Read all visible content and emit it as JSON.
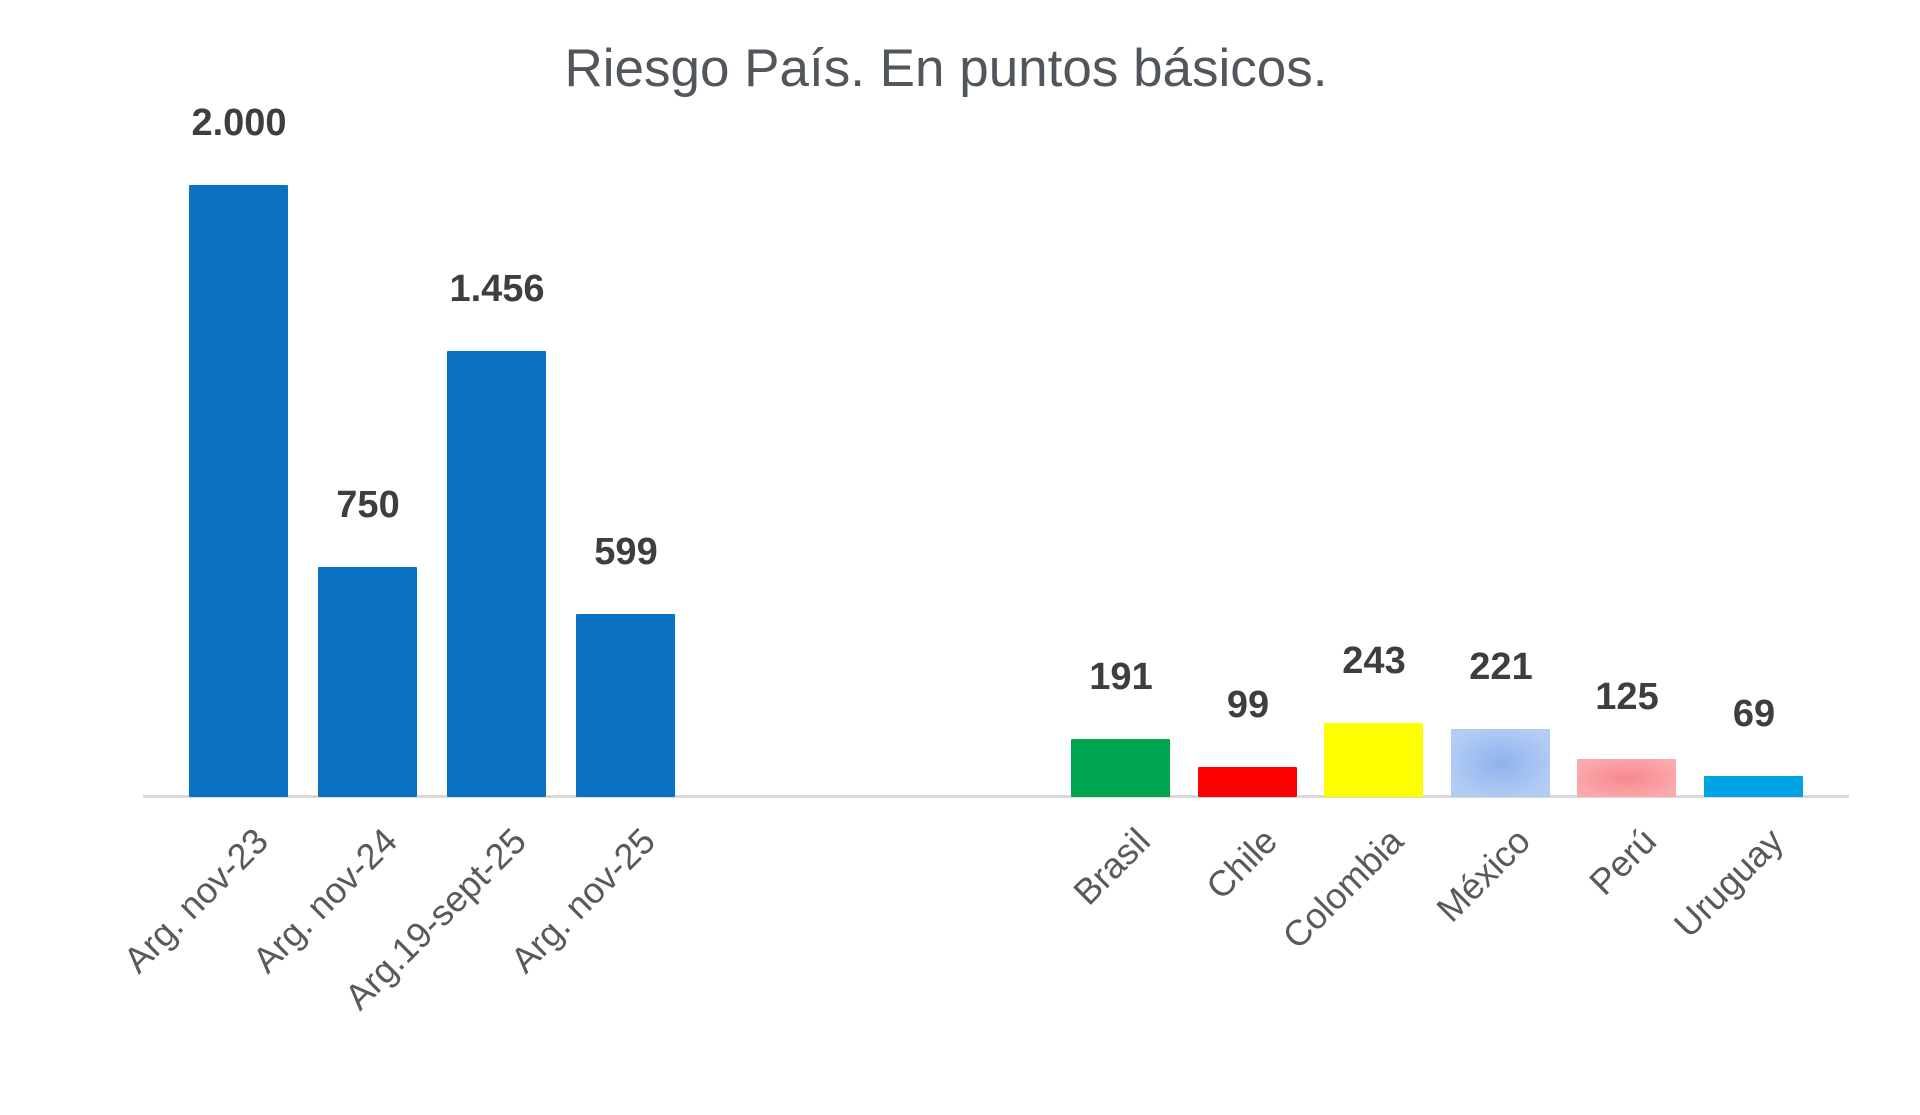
{
  "page": {
    "background_color": "#ffffff"
  },
  "chart_data": {
    "type": "bar",
    "title": "Riesgo País. En puntos básicos.",
    "xlabel": "",
    "ylabel": "",
    "ylim": [
      0,
      2000
    ],
    "grid": false,
    "legend": "none",
    "data_labels": true,
    "y_axis_visible": false,
    "category_label_rotation_deg": 45,
    "colors": {
      "title": "#51565c",
      "value_label": "#3e3e40",
      "category_label": "#595959",
      "axis_line": "#d9d9d9",
      "argentina_blue": "#0b72c1"
    },
    "categories": [
      "Arg. nov-23",
      "Arg. nov-24",
      "Arg.19-sept-25",
      "Arg. nov-25",
      "Brasil",
      "Chile",
      "Colombia",
      "México",
      "Perú",
      "Uruguay"
    ],
    "values": [
      2000,
      750,
      1456,
      599,
      191,
      99,
      243,
      221,
      125,
      69
    ],
    "bars": [
      {
        "label": "Arg. nov-23",
        "value": 2000,
        "display": "2.000",
        "group": "argentina",
        "fill": {
          "color": "#0b72c1"
        }
      },
      {
        "label": "Arg. nov-24",
        "value": 750,
        "display": "750",
        "group": "argentina",
        "fill": {
          "color": "#0b72c1"
        }
      },
      {
        "label": "Arg.19-sept-25",
        "value": 1456,
        "display": "1.456",
        "group": "argentina",
        "fill": {
          "color": "#0b72c1"
        }
      },
      {
        "label": "Arg. nov-25",
        "value": 599,
        "display": "599",
        "group": "argentina",
        "fill": {
          "color": "#0b72c1"
        }
      },
      {
        "label": "Brasil",
        "value": 191,
        "display": "191",
        "group": "latam",
        "fill": {
          "color": "#00a550"
        }
      },
      {
        "label": "Chile",
        "value": 99,
        "display": "99",
        "group": "latam",
        "fill": {
          "color": "#fd0002"
        }
      },
      {
        "label": "Colombia",
        "value": 243,
        "display": "243",
        "group": "latam",
        "fill": {
          "color": "#ffff00"
        }
      },
      {
        "label": "México",
        "value": 221,
        "display": "221",
        "group": "latam",
        "fill": {
          "color": "#b3ccf4",
          "center": "#8fb2ee"
        }
      },
      {
        "label": "Perú",
        "value": 125,
        "display": "125",
        "group": "latam",
        "fill": {
          "color": "#faa9ad",
          "center": "#f8878d"
        }
      },
      {
        "label": "Uruguay",
        "value": 69,
        "display": "69",
        "group": "latam",
        "fill": {
          "color": "#00a4e4"
        }
      }
    ]
  }
}
